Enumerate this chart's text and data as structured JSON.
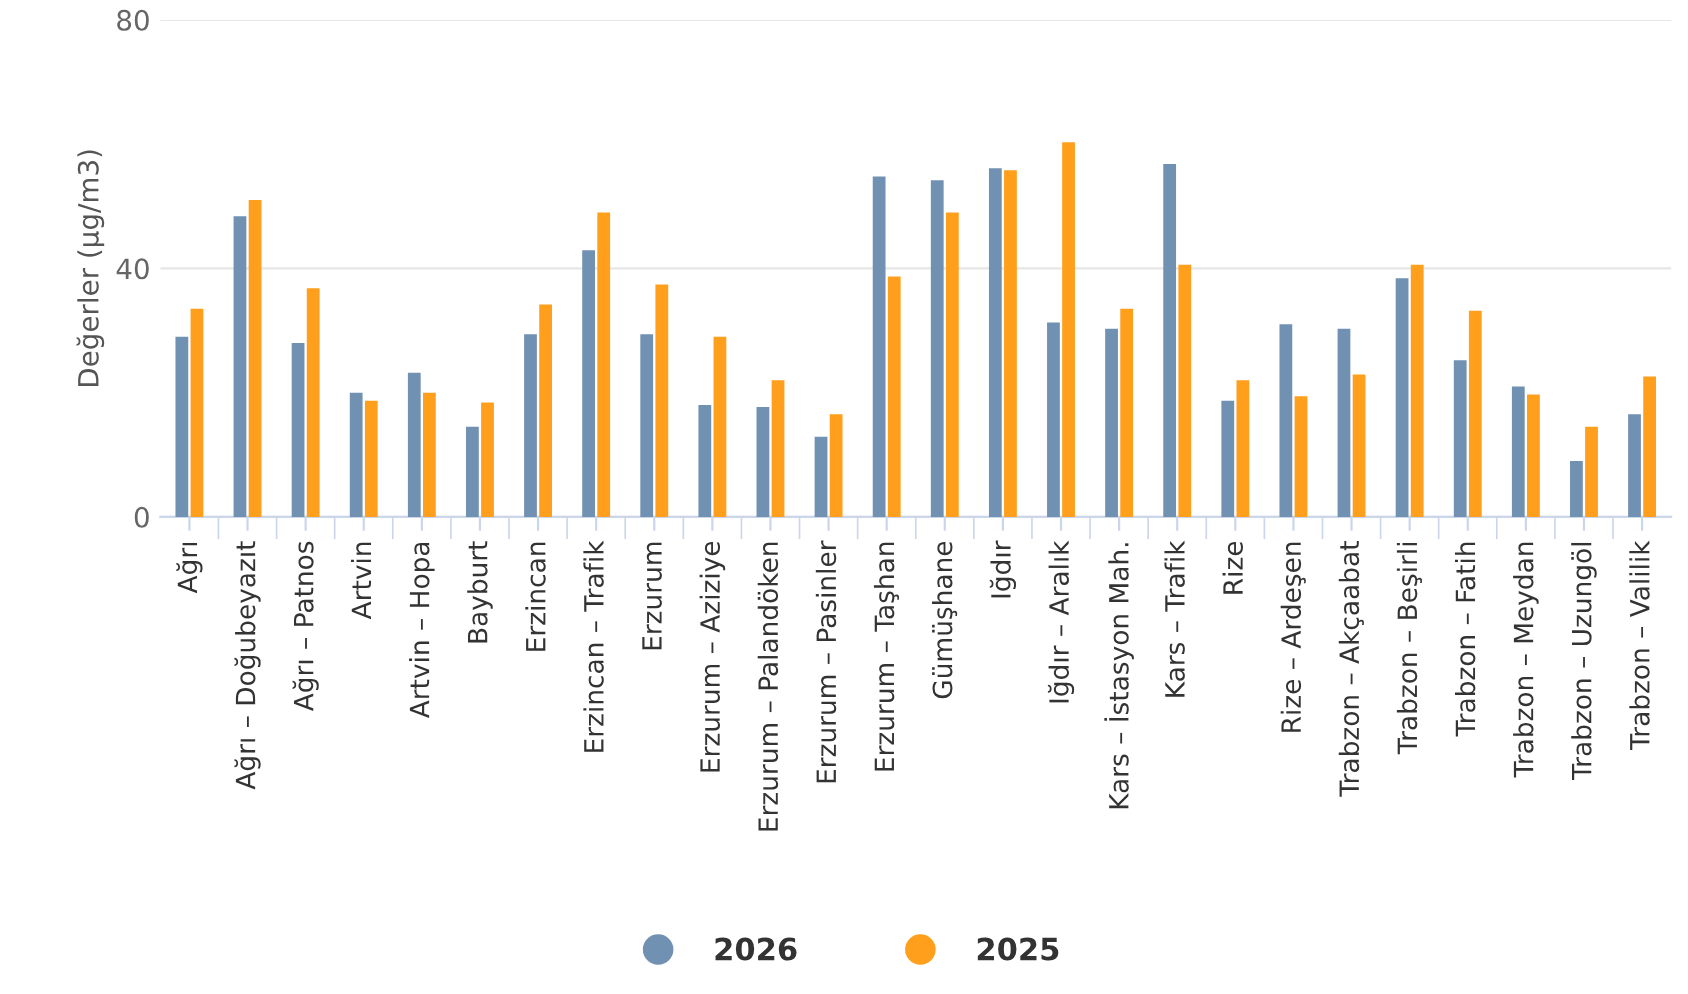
{
  "chart_data": {
    "type": "bar",
    "ylabel": "Değerler (µg/m3)",
    "categories": [
      "Ağrı",
      "Ağrı – Doğubeyazıt",
      "Ağrı – Patnos",
      "Artvin",
      "Artvin – Hopa",
      "Bayburt",
      "Erzincan",
      "Erzincan – Trafik",
      "Erzurum",
      "Erzurum – Aziziye",
      "Erzurum – Palandöken",
      "Erzurum – Pasinler",
      "Erzurum – Taşhan",
      "Gümüşhane",
      "Iğdır",
      "Iğdır – Aralık",
      "Kars – İstasyon Mah.",
      "Kars – Trafik",
      "Rize",
      "Rize – Ardeşen",
      "Trabzon – Akçaabat",
      "Trabzon – Beşirli",
      "Trabzon – Fatih",
      "Trabzon – Meydan",
      "Trabzon – Uzungöl",
      "Trabzon – Valilik"
    ],
    "series": [
      {
        "name": "2026",
        "color": "#7191b3",
        "values": [
          29,
          48.4,
          28,
          20,
          23.2,
          14.5,
          29.4,
          42.9,
          29.4,
          18,
          17.7,
          12.9,
          54.8,
          54.2,
          56.1,
          31.3,
          30.3,
          56.8,
          18.7,
          31,
          30.3,
          38.4,
          25.2,
          21,
          9,
          16.5
        ]
      },
      {
        "name": "2025",
        "color": "#ff9f1c",
        "values": [
          33.5,
          51,
          36.8,
          18.7,
          20,
          18.4,
          34.2,
          49,
          37.4,
          29,
          22,
          16.5,
          38.7,
          49,
          55.8,
          60.3,
          33.5,
          40.6,
          22,
          19.4,
          22.9,
          40.6,
          33.2,
          19.7,
          14.5,
          22.6
        ]
      }
    ],
    "ylim": [
      0,
      80
    ],
    "yticks": [
      0,
      40,
      80
    ],
    "grid": "y",
    "legend": "bottom",
    "marker": "circle"
  }
}
